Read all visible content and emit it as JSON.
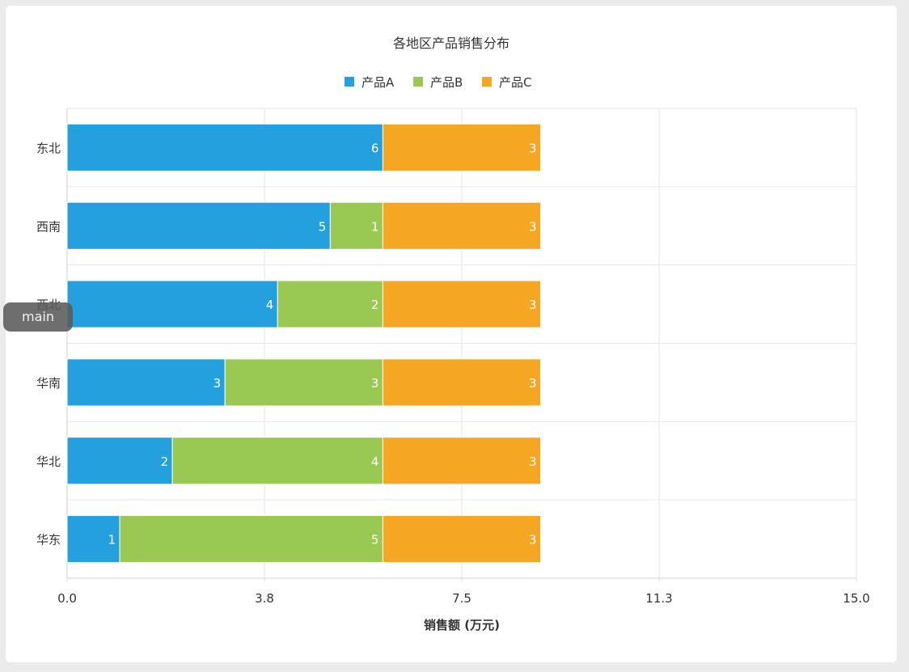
{
  "chart_data": {
    "type": "bar",
    "orientation": "horizontal",
    "stacked": true,
    "title": "各地区产品销售分布",
    "xlabel": "销售额 (万元)",
    "ylabel": "",
    "categories": [
      "东北",
      "西南",
      "西北",
      "华南",
      "华北",
      "华东"
    ],
    "series": [
      {
        "name": "产品A",
        "color": "#23a0dd",
        "values": [
          6,
          5,
          4,
          3,
          2,
          1
        ]
      },
      {
        "name": "产品B",
        "color": "#99c953",
        "values": [
          0,
          1,
          2,
          3,
          4,
          5
        ]
      },
      {
        "name": "产品C",
        "color": "#f5a623",
        "values": [
          3,
          3,
          3,
          3,
          3,
          3
        ]
      }
    ],
    "xlim": [
      0,
      15
    ],
    "x_ticks": [
      "0.0",
      "3.8",
      "7.5",
      "11.3",
      "15.0"
    ],
    "x_tick_values": [
      0,
      3.75,
      7.5,
      11.25,
      15
    ],
    "grid": true,
    "legend_position": "top-center"
  },
  "frame_badge": "main"
}
